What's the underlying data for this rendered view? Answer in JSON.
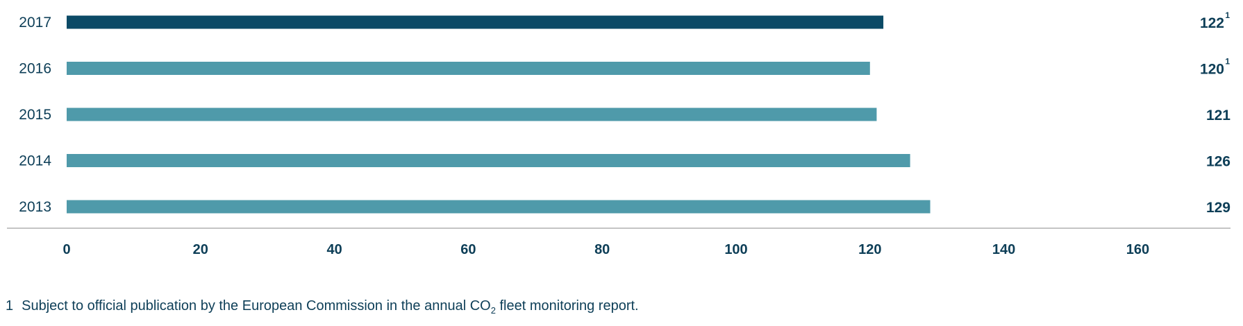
{
  "chart_data": {
    "type": "bar",
    "orientation": "horizontal",
    "categories": [
      "2017",
      "2016",
      "2015",
      "2014",
      "2013"
    ],
    "values": [
      122,
      120,
      121,
      126,
      129
    ],
    "value_labels": [
      "122",
      "120",
      "121",
      "126",
      "129"
    ],
    "value_superscripts": [
      "1",
      "1",
      "",
      "",
      ""
    ],
    "highlight_category": "2017",
    "colors": {
      "highlight": "#0b4a66",
      "bar": "#4f9aaa",
      "text": "#0d3e57",
      "axis": "#a0a0a0"
    },
    "xlim": [
      0,
      170
    ],
    "xticks": [
      0,
      20,
      40,
      60,
      80,
      100,
      120,
      140,
      160
    ],
    "xtick_labels": [
      "0",
      "20",
      "40",
      "60",
      "80",
      "100",
      "120",
      "140",
      "160"
    ],
    "grid": false,
    "legend": "none"
  },
  "footnote": {
    "marker": "1",
    "text_before": "Subject to official publication by the European Commission in the annual CO",
    "subscript": "2",
    "text_after": " fleet monitoring report."
  }
}
